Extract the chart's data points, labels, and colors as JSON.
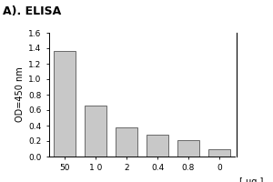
{
  "title": "A). ELISA",
  "categories": [
    "50",
    "1 0",
    "2",
    "0.4",
    "0.8",
    "0"
  ],
  "values": [
    1.37,
    0.66,
    0.38,
    0.28,
    0.21,
    0.1
  ],
  "bar_color": "#c8c8c8",
  "bar_edge_color": "#555555",
  "ylabel": "OD=450 nm",
  "xlabel_right": "[ μg ]",
  "ylim": [
    0,
    1.6
  ],
  "yticks": [
    0.0,
    0.2,
    0.4,
    0.6,
    0.8,
    1.0,
    1.2,
    1.4,
    1.6
  ],
  "title_fontsize": 9,
  "ylabel_fontsize": 7,
  "xlabel_fontsize": 7,
  "tick_fontsize": 6.5,
  "background_color": "#ffffff"
}
